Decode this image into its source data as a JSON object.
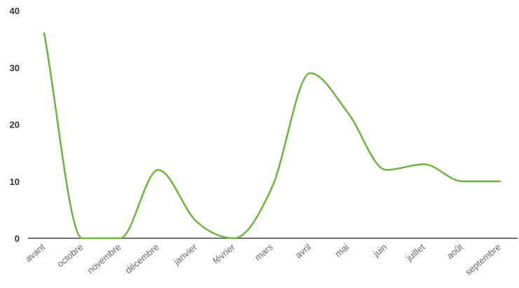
{
  "chart_data": {
    "type": "line",
    "title": "",
    "xlabel": "",
    "ylabel": "",
    "categories": [
      "avant",
      "octobre",
      "novembre",
      "décembre",
      "janvier",
      "février",
      "mars",
      "avril",
      "mai",
      "juin",
      "juillet",
      "août",
      "septembre"
    ],
    "series": [
      {
        "values": [
          36,
          0,
          0,
          12,
          3,
          0,
          9,
          29,
          22,
          12,
          13,
          10,
          10
        ]
      }
    ],
    "ylim": [
      0,
      40
    ],
    "yticks": [
      0,
      10,
      20,
      30,
      40
    ],
    "grid": false,
    "smooth": true,
    "colors": {
      "line": "#6cb33f",
      "axis": "#444444"
    }
  }
}
